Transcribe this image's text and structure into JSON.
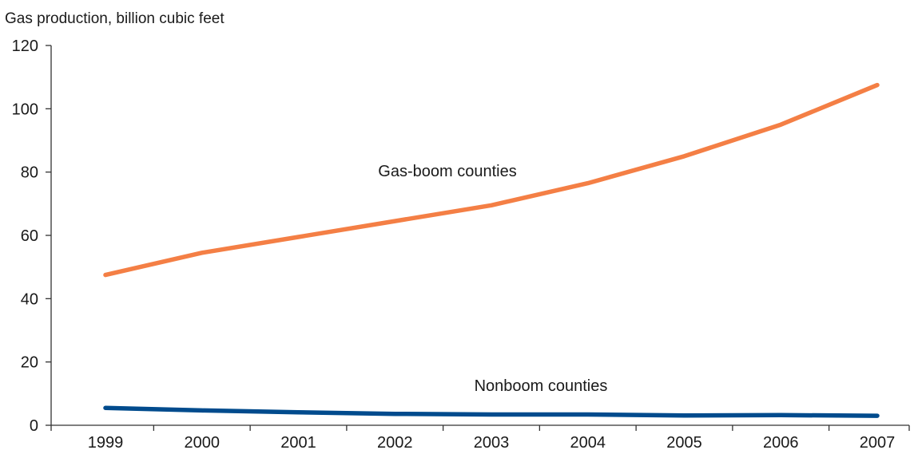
{
  "chart_data": {
    "type": "line",
    "ylabel": "Gas production, billion cubic feet",
    "x": [
      "1999",
      "2000",
      "2001",
      "2002",
      "2003",
      "2004",
      "2005",
      "2006",
      "2007"
    ],
    "ylim": [
      0,
      120
    ],
    "yticks": [
      "0",
      "20",
      "40",
      "60",
      "80",
      "100",
      "120"
    ],
    "grid": false,
    "series": [
      {
        "name": "Gas-boom counties",
        "values": [
          47.5,
          54.5,
          59.5,
          64.5,
          69.5,
          76.5,
          85.0,
          95.0,
          107.5
        ],
        "color": "#f47f45"
      },
      {
        "name": "Nonboom counties",
        "values": [
          5.5,
          4.7,
          4.1,
          3.6,
          3.4,
          3.4,
          3.1,
          3.2,
          3.0
        ],
        "color": "#004b8d"
      }
    ]
  }
}
